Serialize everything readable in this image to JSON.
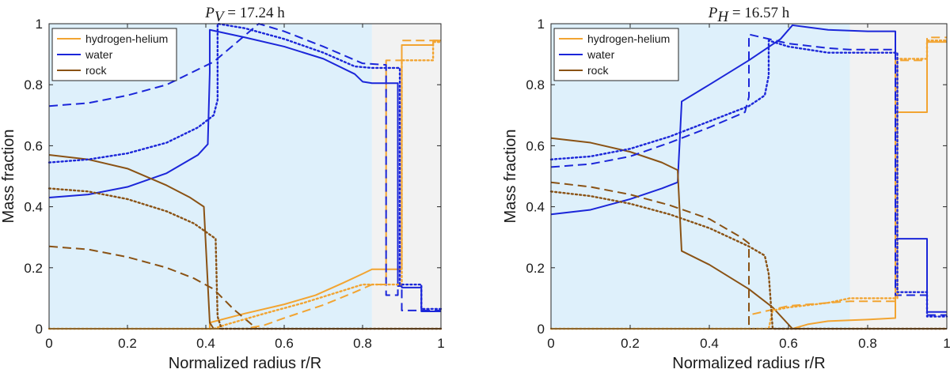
{
  "chart_data": [
    {
      "type": "line",
      "title": {
        "symbol": "P",
        "subscript": "V",
        "value": " = 17.24 h"
      },
      "xlabel": "Normalized radius r/R",
      "ylabel": "Mass fraction",
      "xlim": [
        0,
        1
      ],
      "ylim": [
        0,
        1
      ],
      "xticks": [
        "0",
        "0.2",
        "0.4",
        "0.6",
        "0.8",
        "1"
      ],
      "yticks": [
        "0",
        "0.2",
        "0.4",
        "0.6",
        "0.8",
        "1"
      ],
      "legend": {
        "placement": "top-left",
        "entries": [
          "hydrogen-helium",
          "water",
          "rock"
        ]
      },
      "regions": [
        {
          "x": [
            0,
            0.824
          ],
          "color": "#def0fb"
        },
        {
          "x": [
            0.824,
            1.0
          ],
          "color": "#f2f2f2"
        }
      ],
      "line_styles": [
        "solid",
        "dashed",
        "dotted"
      ],
      "series": [
        {
          "name": "hydrogen-helium",
          "color": "#f2a431",
          "style": "solid",
          "x": [
            0,
            0.41,
            0.41,
            0.5,
            0.6,
            0.68,
            0.75,
            0.8,
            0.824,
            0.9,
            0.9,
            0.98,
            0.98,
            1.0
          ],
          "y": [
            0,
            0,
            0.02,
            0.05,
            0.08,
            0.11,
            0.15,
            0.18,
            0.195,
            0.195,
            0.93,
            0.93,
            0.945,
            0.945
          ]
        },
        {
          "name": "water",
          "color": "#1b26d9",
          "style": "solid",
          "x": [
            0,
            0.1,
            0.2,
            0.3,
            0.38,
            0.405,
            0.41,
            0.41,
            0.5,
            0.6,
            0.7,
            0.78,
            0.8,
            0.824,
            0.89,
            0.89,
            0.9,
            0.9,
            0.95,
            0.95,
            1.0
          ],
          "y": [
            0.43,
            0.44,
            0.465,
            0.51,
            0.57,
            0.605,
            0.84,
            0.98,
            0.955,
            0.925,
            0.885,
            0.835,
            0.81,
            0.805,
            0.805,
            0.14,
            0.14,
            0.135,
            0.135,
            0.057,
            0.057
          ]
        },
        {
          "name": "rock",
          "color": "#8a5214",
          "style": "solid",
          "x": [
            0,
            0.1,
            0.2,
            0.3,
            0.36,
            0.395,
            0.41,
            0.42,
            1.0
          ],
          "y": [
            0.57,
            0.555,
            0.525,
            0.47,
            0.43,
            0.4,
            0.02,
            0,
            0
          ]
        },
        {
          "name": "hydrogen-helium",
          "color": "#f2a431",
          "style": "dashed",
          "x": [
            0,
            0.5,
            0.55,
            0.6,
            0.7,
            0.78,
            0.824,
            0.86,
            0.86,
            0.9,
            0.9,
            1.0
          ],
          "y": [
            0,
            0,
            0.012,
            0.035,
            0.078,
            0.12,
            0.145,
            0.145,
            0.88,
            0.88,
            0.945,
            0.945
          ]
        },
        {
          "name": "water",
          "color": "#1b26d9",
          "style": "dashed",
          "x": [
            0,
            0.1,
            0.2,
            0.3,
            0.38,
            0.42,
            0.48,
            0.535,
            0.6,
            0.7,
            0.8,
            0.86,
            0.86,
            0.89,
            0.89,
            0.9,
            0.9,
            1.0
          ],
          "y": [
            0.73,
            0.74,
            0.765,
            0.8,
            0.85,
            0.875,
            0.94,
            1.0,
            0.975,
            0.925,
            0.87,
            0.865,
            0.11,
            0.11,
            0.13,
            0.13,
            0.06,
            0.06
          ]
        },
        {
          "name": "rock",
          "color": "#8a5214",
          "style": "dashed",
          "x": [
            0,
            0.1,
            0.2,
            0.3,
            0.37,
            0.42,
            0.47,
            0.53,
            1.0
          ],
          "y": [
            0.27,
            0.26,
            0.235,
            0.2,
            0.165,
            0.13,
            0.065,
            0,
            0
          ]
        },
        {
          "name": "hydrogen-helium",
          "color": "#f2a431",
          "style": "dotted",
          "x": [
            0,
            0.42,
            0.45,
            0.55,
            0.65,
            0.75,
            0.8,
            0.824,
            0.9,
            0.9,
            0.98,
            0.98,
            1.0
          ],
          "y": [
            0,
            0,
            0.013,
            0.05,
            0.085,
            0.125,
            0.145,
            0.145,
            0.145,
            0.88,
            0.88,
            0.94,
            0.94
          ]
        },
        {
          "name": "water",
          "color": "#1b26d9",
          "style": "dotted",
          "x": [
            0,
            0.1,
            0.2,
            0.3,
            0.38,
            0.42,
            0.43,
            0.43,
            0.5,
            0.6,
            0.7,
            0.78,
            0.824,
            0.895,
            0.895,
            0.9,
            0.9,
            0.95,
            0.95,
            1.0
          ],
          "y": [
            0.545,
            0.555,
            0.575,
            0.61,
            0.66,
            0.7,
            0.75,
            1.0,
            0.985,
            0.95,
            0.905,
            0.86,
            0.855,
            0.855,
            0.145,
            0.145,
            0.145,
            0.145,
            0.065,
            0.065
          ]
        },
        {
          "name": "rock",
          "color": "#8a5214",
          "style": "dotted",
          "x": [
            0,
            0.1,
            0.2,
            0.3,
            0.37,
            0.425,
            0.43,
            0.44,
            1.0
          ],
          "y": [
            0.46,
            0.45,
            0.425,
            0.385,
            0.345,
            0.295,
            0.04,
            0,
            0
          ]
        }
      ]
    },
    {
      "type": "line",
      "title": {
        "symbol": "P",
        "subscript": "H",
        "value": " = 16.57 h"
      },
      "xlabel": "Normalized radius r/R",
      "ylabel": "Mass fraction",
      "xlim": [
        0,
        1
      ],
      "ylim": [
        0,
        1
      ],
      "xticks": [
        "0",
        "0.2",
        "0.4",
        "0.6",
        "0.8",
        "1"
      ],
      "yticks": [
        "0",
        "0.2",
        "0.4",
        "0.6",
        "0.8",
        "1"
      ],
      "legend": {
        "placement": "top-left",
        "entries": [
          "hydrogen-helium",
          "water",
          "rock"
        ]
      },
      "regions": [
        {
          "x": [
            0,
            0.755
          ],
          "color": "#def0fb"
        },
        {
          "x": [
            0.755,
            1.0
          ],
          "color": "#f2f2f2"
        }
      ],
      "line_styles": [
        "solid",
        "dashed",
        "dotted"
      ],
      "series": [
        {
          "name": "hydrogen-helium",
          "color": "#f2a431",
          "style": "solid",
          "x": [
            0,
            0.61,
            0.65,
            0.7,
            0.755,
            0.8,
            0.87,
            0.87,
            0.95,
            0.95,
            1.0
          ],
          "y": [
            0,
            0,
            0.015,
            0.025,
            0.028,
            0.03,
            0.035,
            0.71,
            0.71,
            0.94,
            0.94
          ]
        },
        {
          "name": "water",
          "color": "#1b26d9",
          "style": "solid",
          "x": [
            0,
            0.1,
            0.2,
            0.28,
            0.32,
            0.33,
            0.33,
            0.4,
            0.5,
            0.58,
            0.61,
            0.7,
            0.8,
            0.87,
            0.87,
            0.95,
            0.95,
            1.0
          ],
          "y": [
            0.375,
            0.39,
            0.425,
            0.46,
            0.48,
            0.74,
            0.745,
            0.8,
            0.88,
            0.95,
            0.995,
            0.98,
            0.975,
            0.975,
            0.295,
            0.295,
            0.055,
            0.055
          ]
        },
        {
          "name": "rock",
          "color": "#8a5214",
          "style": "solid",
          "x": [
            0,
            0.1,
            0.2,
            0.28,
            0.32,
            0.33,
            0.4,
            0.5,
            0.56,
            0.61,
            1.0
          ],
          "y": [
            0.625,
            0.61,
            0.58,
            0.545,
            0.52,
            0.255,
            0.21,
            0.13,
            0.07,
            0,
            0
          ]
        },
        {
          "name": "hydrogen-helium",
          "color": "#f2a431",
          "style": "dashed",
          "x": [
            0,
            0.5,
            0.5,
            0.55,
            0.6,
            0.7,
            0.755,
            0.87,
            0.87,
            0.95,
            0.95,
            1.0
          ],
          "y": [
            0,
            0,
            0.045,
            0.06,
            0.075,
            0.085,
            0.09,
            0.09,
            0.88,
            0.88,
            0.955,
            0.955
          ]
        },
        {
          "name": "water",
          "color": "#1b26d9",
          "style": "dashed",
          "x": [
            0,
            0.1,
            0.2,
            0.3,
            0.4,
            0.49,
            0.5,
            0.5,
            0.6,
            0.7,
            0.755,
            0.87,
            0.87,
            0.95,
            0.95,
            1.0
          ],
          "y": [
            0.53,
            0.54,
            0.565,
            0.61,
            0.66,
            0.71,
            0.76,
            0.965,
            0.935,
            0.92,
            0.915,
            0.915,
            0.11,
            0.11,
            0.045,
            0.045
          ]
        },
        {
          "name": "rock",
          "color": "#8a5214",
          "style": "dashed",
          "x": [
            0,
            0.1,
            0.2,
            0.3,
            0.4,
            0.48,
            0.5,
            0.5,
            1.0
          ],
          "y": [
            0.48,
            0.465,
            0.44,
            0.405,
            0.36,
            0.3,
            0.28,
            0,
            0
          ]
        },
        {
          "name": "hydrogen-helium",
          "color": "#f2a431",
          "style": "dotted",
          "x": [
            0,
            0.55,
            0.56,
            0.6,
            0.7,
            0.755,
            0.875,
            0.875,
            0.95,
            0.95,
            1.0
          ],
          "y": [
            0,
            0,
            0.06,
            0.07,
            0.085,
            0.1,
            0.1,
            0.885,
            0.885,
            0.945,
            0.945
          ]
        },
        {
          "name": "water",
          "color": "#1b26d9",
          "style": "dotted",
          "x": [
            0,
            0.1,
            0.2,
            0.3,
            0.4,
            0.5,
            0.54,
            0.55,
            0.55,
            0.6,
            0.7,
            0.755,
            0.875,
            0.875,
            0.95,
            0.95,
            1.0
          ],
          "y": [
            0.555,
            0.565,
            0.59,
            0.63,
            0.68,
            0.73,
            0.765,
            0.83,
            0.945,
            0.925,
            0.905,
            0.905,
            0.905,
            0.12,
            0.12,
            0.04,
            0.04
          ]
        },
        {
          "name": "rock",
          "color": "#8a5214",
          "style": "dotted",
          "x": [
            0,
            0.1,
            0.2,
            0.3,
            0.4,
            0.5,
            0.54,
            0.55,
            0.56,
            1.0
          ],
          "y": [
            0.45,
            0.435,
            0.41,
            0.375,
            0.33,
            0.27,
            0.24,
            0.18,
            0,
            0
          ]
        }
      ]
    }
  ]
}
